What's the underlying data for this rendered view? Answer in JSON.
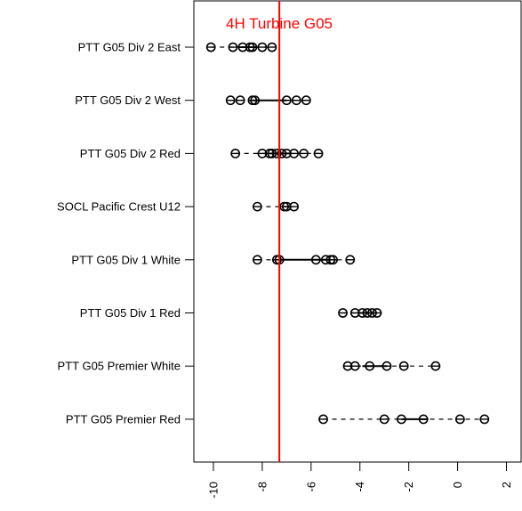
{
  "chart_data": {
    "type": "scatter",
    "title": "4H Turbine G05",
    "title_color": "#ff0000",
    "xlabel": "",
    "ylabel": "",
    "xlim": [
      -10.8,
      2.6
    ],
    "x_ticks": [
      -10,
      -8,
      -6,
      -4,
      -2,
      0,
      2
    ],
    "x_tick_labels": [
      "-10",
      "-8",
      "-6",
      "-4",
      "-2",
      "0",
      "2"
    ],
    "reference_line": {
      "x": -7.3,
      "color": "#ff0000"
    },
    "grid": false,
    "legend": "none",
    "marker": "circle-with-bar",
    "categories": [
      "PTT G05 Div 2 East",
      "PTT G05 Div 2 West",
      "PTT G05 Div 2 Red",
      "SOCL Pacific Crest U12",
      "PTT G05 Div 1 White",
      "PTT G05 Div 1 Red",
      "PTT G05 Premier White",
      "PTT G05 Premier Red"
    ],
    "series": [
      {
        "points": [
          -10.1,
          -9.2,
          -8.8,
          -8.5,
          -8.4,
          -8.0,
          -7.6
        ],
        "box": [
          -9.0,
          -8.2
        ]
      },
      {
        "points": [
          -9.3,
          -8.9,
          -8.4,
          -8.3,
          -7.0,
          -6.6,
          -6.2
        ],
        "box": [
          -8.4,
          -7.0
        ]
      },
      {
        "points": [
          -9.1,
          -8.0,
          -7.7,
          -7.6,
          -7.4,
          -7.2,
          -7.0,
          -6.7,
          -6.3,
          -5.7
        ],
        "box": [
          -7.7,
          -6.9
        ]
      },
      {
        "points": [
          -8.2,
          -7.1,
          -7.0,
          -6.7
        ],
        "box": [
          -7.0,
          -6.9
        ]
      },
      {
        "points": [
          -8.2,
          -7.4,
          -7.3,
          -5.8,
          -5.4,
          -5.2,
          -5.1,
          -4.4
        ],
        "box": [
          -7.3,
          -5.2
        ]
      },
      {
        "points": [
          -4.7,
          -4.2,
          -3.9,
          -3.7,
          -3.5,
          -3.3
        ],
        "box": [
          -4.0,
          -3.4
        ]
      },
      {
        "points": [
          -4.5,
          -4.2,
          -3.6,
          -2.9,
          -2.2,
          -0.9
        ],
        "box": [
          -3.9,
          -2.9
        ]
      },
      {
        "points": [
          -5.5,
          -3.0,
          -2.3,
          -1.4,
          0.1,
          1.1
        ],
        "box": [
          -2.3,
          -1.2
        ]
      }
    ]
  }
}
